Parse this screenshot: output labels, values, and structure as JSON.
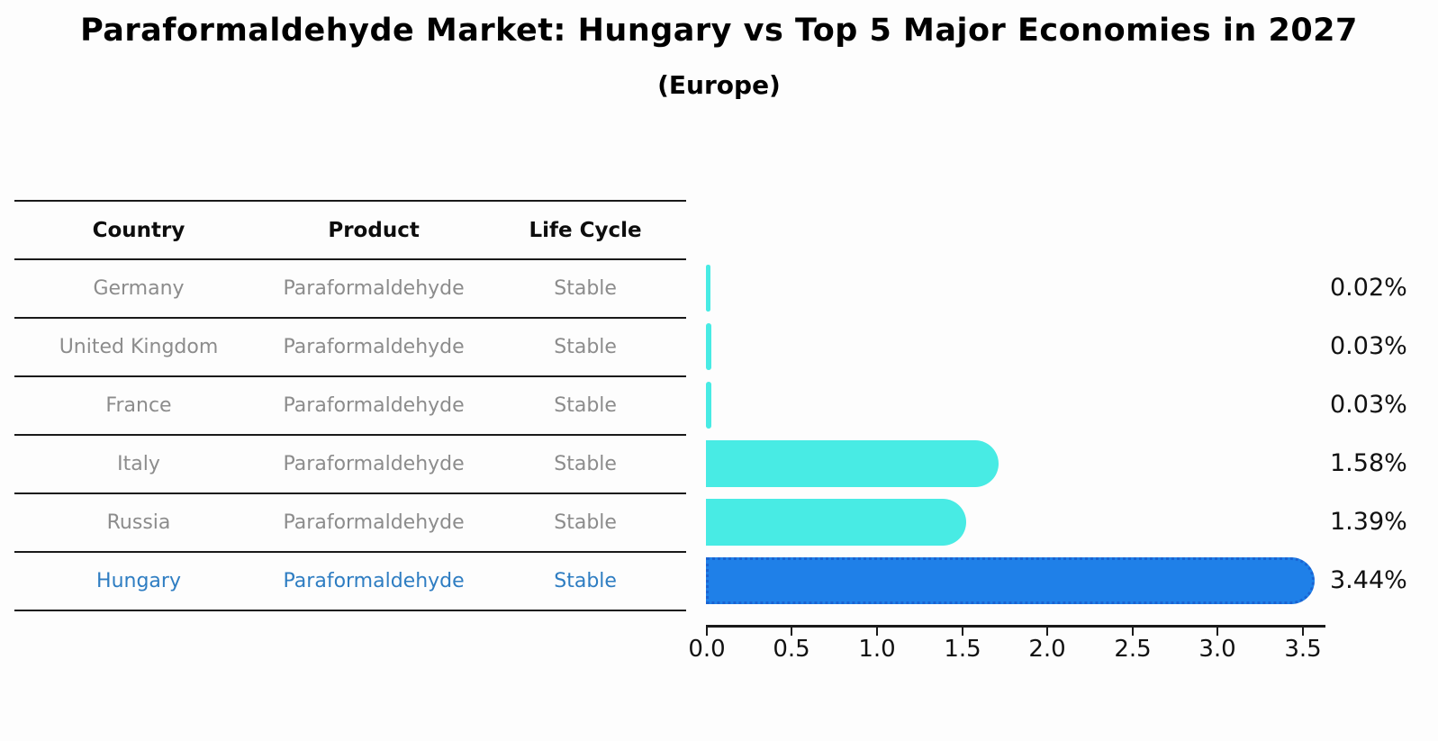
{
  "chart_data": {
    "type": "bar",
    "orientation": "horizontal",
    "title": "Paraformaldehyde Market: Hungary vs Top 5 Major Economies in 2027",
    "subtitle": "(Europe)",
    "categories": [
      "Germany",
      "United Kingdom",
      "France",
      "Italy",
      "Russia",
      "Hungary"
    ],
    "values": [
      0.02,
      0.03,
      0.03,
      1.58,
      1.39,
      3.44
    ],
    "value_labels": [
      "0.02%",
      "0.03%",
      "0.03%",
      "1.58%",
      "1.39%",
      "3.44%"
    ],
    "xlim": [
      0,
      3.5
    ],
    "xtick_labels": [
      "0.0",
      "0.5",
      "1.0",
      "1.5",
      "2.0",
      "2.5",
      "3.0",
      "3.5"
    ],
    "highlight_index": 5,
    "bar_color": "#48EBE4",
    "highlight_color": "#1F80E8",
    "grid": false,
    "legend": "none"
  },
  "table": {
    "headers": [
      "Country",
      "Product",
      "Life Cycle"
    ],
    "rows": [
      {
        "country": "Germany",
        "product": "Paraformaldehyde",
        "life_cycle": "Stable"
      },
      {
        "country": "United Kingdom",
        "product": "Paraformaldehyde",
        "life_cycle": "Stable"
      },
      {
        "country": "France",
        "product": "Paraformaldehyde",
        "life_cycle": "Stable"
      },
      {
        "country": "Italy",
        "product": "Paraformaldehyde",
        "life_cycle": "Stable"
      },
      {
        "country": "Russia",
        "product": "Paraformaldehyde",
        "life_cycle": "Stable"
      },
      {
        "country": "Hungary",
        "product": "Paraformaldehyde",
        "life_cycle": "Stable"
      }
    ]
  }
}
